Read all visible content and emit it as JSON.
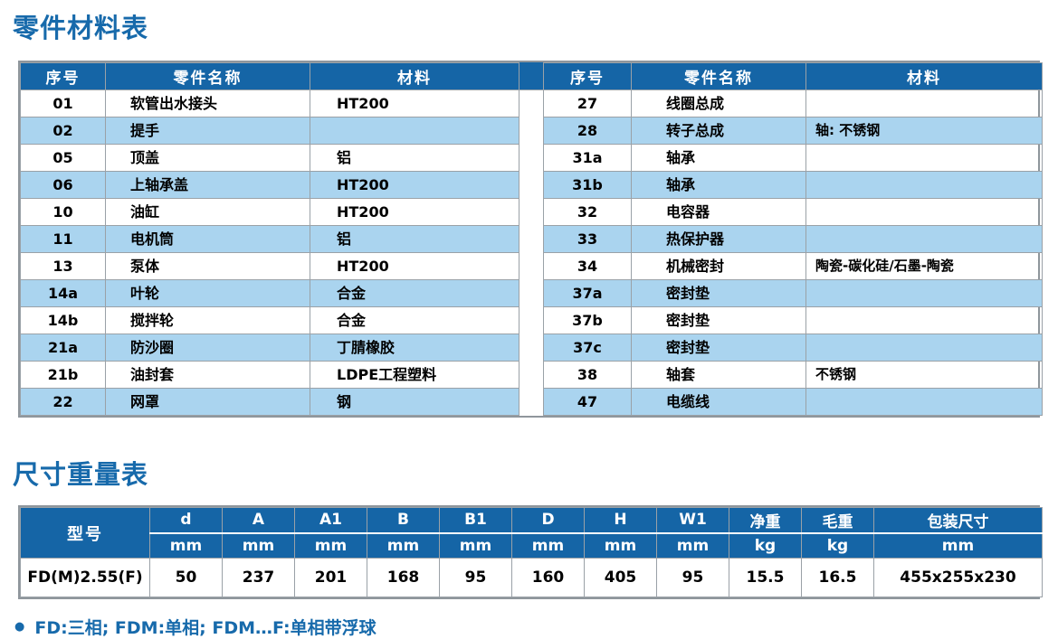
{
  "page": {
    "parts_title": "零件材料表",
    "dim_title": "尺寸重量表",
    "footnote": "FD:三相; FDM:单相; FDM…F:单相带浮球",
    "footnote_bullet": "●"
  },
  "parts_table": {
    "headers": [
      "序号",
      "零件名称",
      "材料"
    ],
    "left_rows": [
      {
        "no": "01",
        "name": "软管出水接头",
        "material": "HT200"
      },
      {
        "no": "02",
        "name": "提手",
        "material": ""
      },
      {
        "no": "05",
        "name": "顶盖",
        "material": "铝"
      },
      {
        "no": "06",
        "name": "上轴承盖",
        "material": "HT200"
      },
      {
        "no": "10",
        "name": "油缸",
        "material": "HT200"
      },
      {
        "no": "11",
        "name": "电机筒",
        "material": "铝"
      },
      {
        "no": "13",
        "name": "泵体",
        "material": "HT200"
      },
      {
        "no": "14a",
        "name": "叶轮",
        "material": "合金"
      },
      {
        "no": "14b",
        "name": "搅拌轮",
        "material": "合金"
      },
      {
        "no": "21a",
        "name": "防沙圈",
        "material": "丁腈橡胶"
      },
      {
        "no": "21b",
        "name": "油封套",
        "material": "LDPE工程塑料"
      },
      {
        "no": "22",
        "name": "网罩",
        "material": "钢"
      }
    ],
    "right_rows": [
      {
        "no": "27",
        "name": "线圈总成",
        "material": ""
      },
      {
        "no": "28",
        "name": "转子总成",
        "material": "轴: 不锈钢"
      },
      {
        "no": "31a",
        "name": "轴承",
        "material": ""
      },
      {
        "no": "31b",
        "name": "轴承",
        "material": ""
      },
      {
        "no": "32",
        "name": "电容器",
        "material": ""
      },
      {
        "no": "33",
        "name": "热保护器",
        "material": ""
      },
      {
        "no": "34",
        "name": "机械密封",
        "material": "陶瓷-碳化硅/石墨-陶瓷"
      },
      {
        "no": "37a",
        "name": "密封垫",
        "material": ""
      },
      {
        "no": "37b",
        "name": "密封垫",
        "material": ""
      },
      {
        "no": "37c",
        "name": "密封垫",
        "material": ""
      },
      {
        "no": "38",
        "name": "轴套",
        "material": "不锈钢"
      },
      {
        "no": "47",
        "name": "电缆线",
        "material": ""
      }
    ]
  },
  "dimension_table": {
    "model_header": "型号",
    "columns": [
      {
        "label": "d",
        "unit": "mm"
      },
      {
        "label": "A",
        "unit": "mm"
      },
      {
        "label": "A1",
        "unit": "mm"
      },
      {
        "label": "B",
        "unit": "mm"
      },
      {
        "label": "B1",
        "unit": "mm"
      },
      {
        "label": "D",
        "unit": "mm"
      },
      {
        "label": "H",
        "unit": "mm"
      },
      {
        "label": "W1",
        "unit": "mm"
      },
      {
        "label": "净重",
        "unit": "kg"
      },
      {
        "label": "毛重",
        "unit": "kg"
      },
      {
        "label": "包装尺寸",
        "unit": "mm"
      }
    ],
    "rows": [
      {
        "model": "FD(M)2.55(F)",
        "values": [
          "50",
          "237",
          "201",
          "168",
          "95",
          "160",
          "405",
          "95",
          "15.5",
          "16.5",
          "455x255x230"
        ]
      }
    ]
  },
  "colors": {
    "header_blue": "#1565a6",
    "row_blue": "#aad4ef",
    "title_blue": "#176aab",
    "border_outer": "#8f969c",
    "border_inner": "#9aa1a7"
  }
}
